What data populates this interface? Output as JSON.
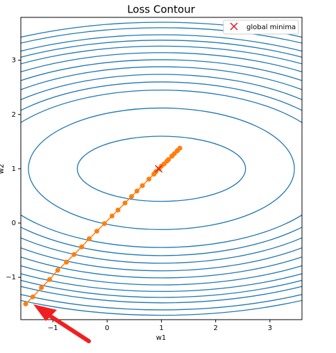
{
  "chart_data": {
    "type": "contour",
    "title": "Loss Contour",
    "xlabel": "w1",
    "ylabel": "w2",
    "xlim": [
      -1.59,
      3.59
    ],
    "ylim": [
      -1.78,
      3.79
    ],
    "xticks": [
      {
        "value": -1,
        "label": "−1"
      },
      0,
      1,
      2,
      3
    ],
    "yticks": [
      {
        "value": -1,
        "label": "−1"
      },
      0,
      1,
      2,
      3
    ],
    "contours": {
      "color": "#1f77b4",
      "center_x": 1.0,
      "center_y": 1.0,
      "rx": [
        1.55,
        2.45,
        3.2,
        3.5,
        3.8,
        4.1,
        4.4,
        4.7,
        5.0,
        5.2,
        5.4,
        5.7,
        5.9
      ],
      "ry": [
        0.6,
        1.12,
        1.45,
        1.6,
        1.74,
        1.88,
        2.01,
        2.14,
        2.26,
        2.37,
        2.47,
        2.6,
        2.7
      ]
    },
    "path": {
      "color": "#ff7f0e",
      "x": [
        -1.5,
        -1.37,
        -1.21,
        -1.06,
        -0.91,
        -0.75,
        -0.61,
        -0.47,
        -0.33,
        -0.19,
        -0.05,
        0.09,
        0.2,
        0.33,
        0.45,
        0.55,
        0.65,
        0.77,
        0.87,
        0.96,
        1.05,
        1.13,
        1.19,
        1.24,
        1.29,
        1.34,
        1.3,
        1.2,
        1.1,
        1.0,
        0.9,
        0.86
      ],
      "y": [
        -1.49,
        -1.36,
        -1.19,
        -1.04,
        -0.87,
        -0.72,
        -0.58,
        -0.44,
        -0.29,
        -0.15,
        -0.01,
        0.13,
        0.24,
        0.37,
        0.49,
        0.59,
        0.69,
        0.81,
        0.91,
        1.0,
        1.09,
        1.17,
        1.23,
        1.28,
        1.33,
        1.38,
        1.34,
        1.24,
        1.14,
        1.05,
        0.95,
        0.9
      ]
    },
    "minimum": {
      "label": "global minima",
      "x": 0.95,
      "y": 1.0,
      "color": "#e31a1c"
    },
    "legend": "upper right"
  }
}
